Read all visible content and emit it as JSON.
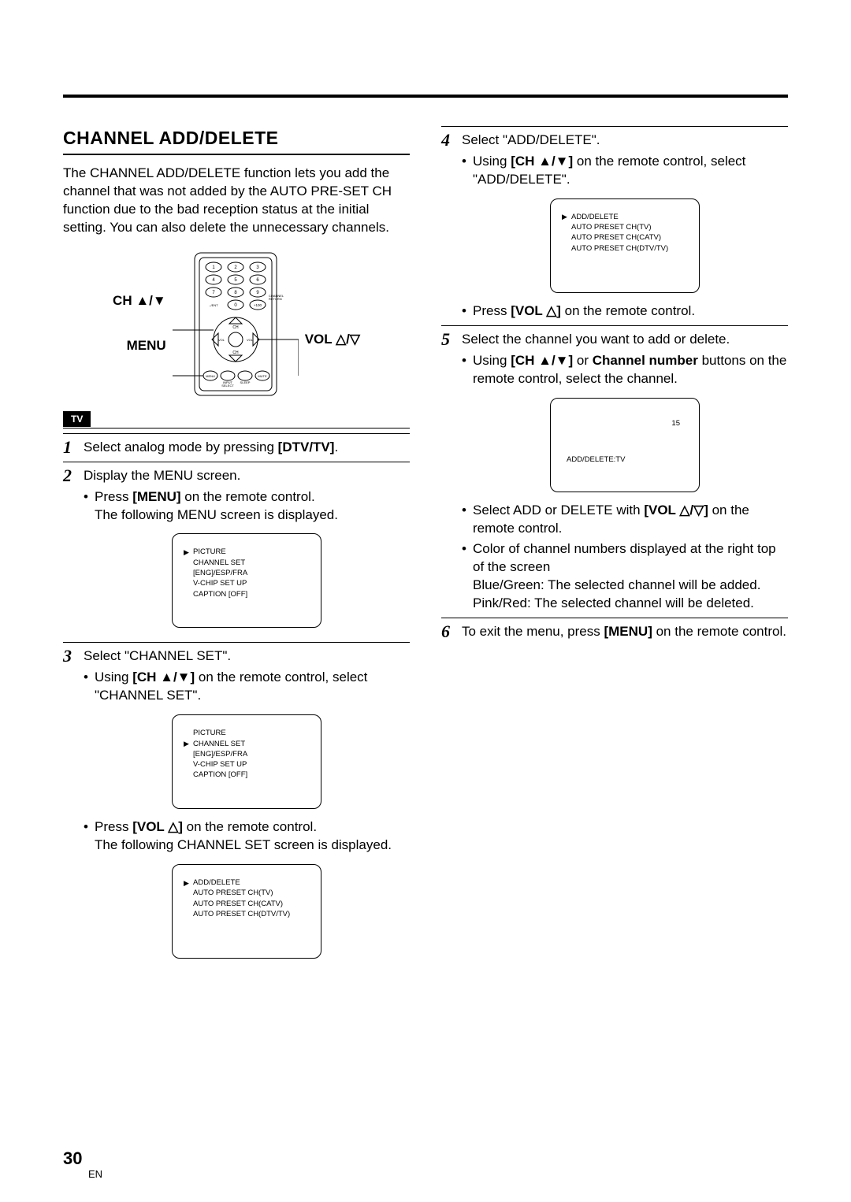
{
  "page": {
    "number": "30",
    "lang": "EN"
  },
  "section": {
    "title": "CHANNEL ADD/DELETE"
  },
  "intro": "The CHANNEL ADD/DELETE function lets you add the channel that was not added by the AUTO PRE-SET CH function due to the bad reception status at the initial setting. You can also delete the unnecessary channels.",
  "remote": {
    "ch_label_prefix": "CH ",
    "menu_label": "MENU",
    "vol_label_prefix": "VOL "
  },
  "badge": "TV",
  "steps": {
    "s1": {
      "num": "1",
      "text_a": "Select analog mode by pressing ",
      "bold": "[DTV/TV]",
      "text_b": "."
    },
    "s2": {
      "num": "2",
      "text": "Display the MENU screen.",
      "bullet_a": "Press ",
      "bullet_bold": "[MENU]",
      "bullet_b": " on the remote control.",
      "bullet_c": "The following MENU screen is displayed."
    },
    "s3": {
      "num": "3",
      "text": "Select \"CHANNEL SET\".",
      "b1_a": "Using ",
      "b1_bold": "[CH ▲/▼]",
      "b1_b": " on the remote control, select \"CHANNEL SET\".",
      "b2_a": "Press ",
      "b2_bold": "[VOL △]",
      "b2_b": " on the remote control.",
      "b2_c": "The following CHANNEL SET screen is displayed."
    },
    "s4": {
      "num": "4",
      "text": "Select \"ADD/DELETE\".",
      "b1_a": "Using ",
      "b1_bold": "[CH ▲/▼]",
      "b1_b": " on the remote control, select \"ADD/DELETE\".",
      "b2_a": "Press ",
      "b2_bold": "[VOL △]",
      "b2_b": " on the remote control."
    },
    "s5": {
      "num": "5",
      "text": "Select the channel you want to add or delete.",
      "b1_a": "Using ",
      "b1_bold": "[CH ▲/▼]",
      "b1_mid": " or ",
      "b1_bold2": "Channel number",
      "b1_b": " buttons on the remote control, select the channel.",
      "b2_a": "Select ADD or DELETE with ",
      "b2_bold": "[VOL △/▽]",
      "b2_b": " on the remote control.",
      "b3": "Color of channel numbers displayed at the right top of the screen",
      "b3_l1": "Blue/Green: The selected channel will be added.",
      "b3_l2": "Pink/Red: The selected channel will be deleted."
    },
    "s6": {
      "num": "6",
      "text_a": "To exit the menu, press ",
      "bold": "[MENU]",
      "text_b": " on the remote control."
    }
  },
  "menu_main": {
    "items": [
      "PICTURE",
      "CHANNEL SET",
      "[ENG]/ESP/FRA",
      "V-CHIP SET UP",
      "CAPTION [OFF]"
    ],
    "pointer_index": 0
  },
  "menu_chset": {
    "items": [
      "PICTURE",
      "CHANNEL SET",
      "[ENG]/ESP/FRA",
      "V-CHIP SET UP",
      "CAPTION [OFF]"
    ],
    "pointer_index": 1
  },
  "menu_addset": {
    "items": [
      "ADD/DELETE",
      "AUTO PRESET CH(TV)",
      "AUTO PRESET CH(CATV)",
      "AUTO PRESET CH(DTV/TV)"
    ],
    "pointer_index": 0
  },
  "channel_box": {
    "num": "15",
    "label": "ADD/DELETE:TV"
  },
  "colors": {
    "text": "#000000",
    "bg": "#ffffff"
  }
}
